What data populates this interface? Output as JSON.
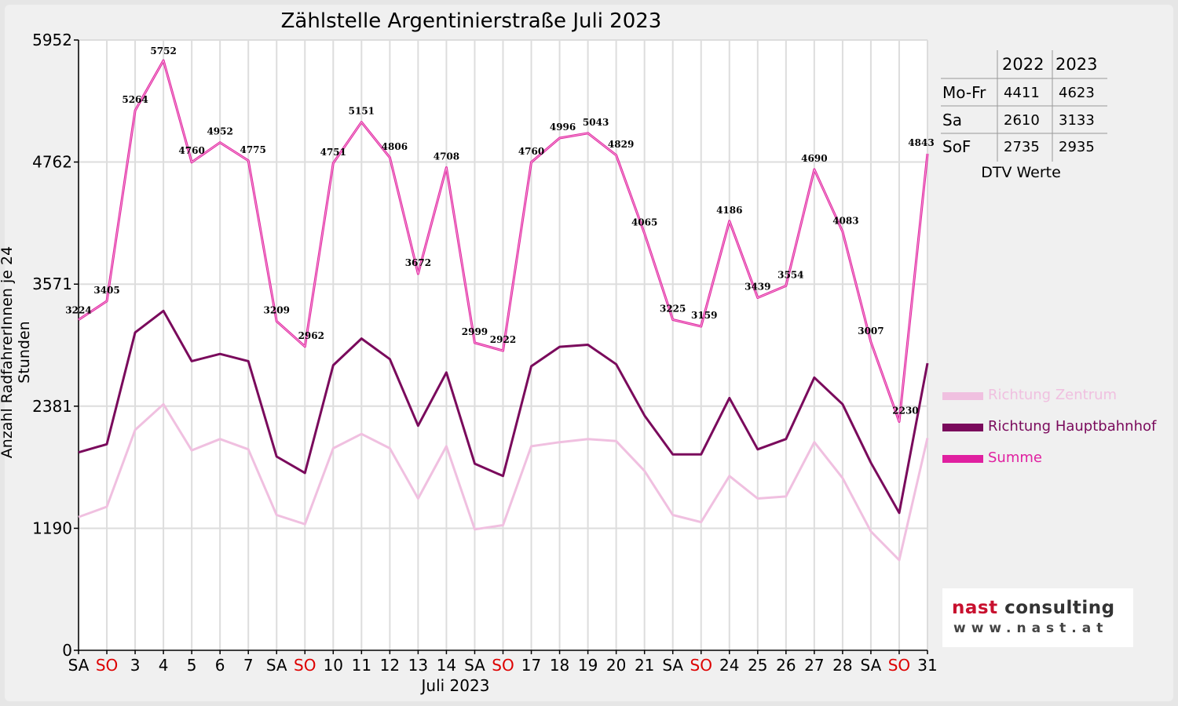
{
  "chart_data": {
    "type": "line",
    "title": "Zählstelle Argentinierstraße Juli 2023",
    "xlabel": "Juli 2023",
    "ylabel": "Anzahl RadfahrerInnen je 24 Stunden",
    "ylim": [
      0,
      5952
    ],
    "y_ticks": [
      0,
      1190,
      2381,
      3571,
      4762,
      5952
    ],
    "categories": [
      "SA",
      "SO",
      "3",
      "4",
      "5",
      "6",
      "7",
      "SA",
      "SO",
      "10",
      "11",
      "12",
      "13",
      "14",
      "SA",
      "SO",
      "17",
      "18",
      "19",
      "20",
      "21",
      "SA",
      "SO",
      "24",
      "25",
      "26",
      "27",
      "28",
      "SA",
      "SO",
      "31"
    ],
    "grid": true,
    "legend_position": "right",
    "series": [
      {
        "name": "Richtung Zentrum",
        "color": "#f0c0e0",
        "values": [
          1300,
          1400,
          2150,
          2400,
          1950,
          2060,
          1960,
          1320,
          1230,
          1970,
          2110,
          1970,
          1480,
          1990,
          1180,
          1220,
          1990,
          2030,
          2060,
          2040,
          1750,
          1320,
          1250,
          1700,
          1480,
          1500,
          2030,
          1680,
          1160,
          880,
          2070
        ]
      },
      {
        "name": "Richtung Hauptbahnhof",
        "color": "#7a0a5c",
        "values": [
          1930,
          2010,
          3100,
          3310,
          2820,
          2890,
          2820,
          1890,
          1730,
          2780,
          3040,
          2840,
          2190,
          2710,
          1820,
          1700,
          2770,
          2960,
          2980,
          2790,
          2290,
          1910,
          1910,
          2460,
          1960,
          2060,
          2660,
          2400,
          1830,
          1340,
          2800
        ]
      },
      {
        "name": "Summe",
        "color": "#e020a0",
        "values": [
          3224,
          3405,
          5264,
          5752,
          4760,
          4952,
          4775,
          3209,
          2962,
          4751,
          5151,
          4806,
          3672,
          4708,
          2999,
          2922,
          4760,
          4996,
          5043,
          4829,
          4065,
          3225,
          3159,
          4186,
          3439,
          3554,
          4690,
          4083,
          3007,
          2230,
          4843
        ],
        "labels": [
          "3224",
          "3405",
          "5264",
          "5752",
          "4760",
          "4952",
          "4775",
          "3209",
          "2962",
          "4751",
          "5151",
          "4806",
          "3672",
          "4708",
          "2999",
          "2922",
          "4760",
          "4996",
          "5043",
          "4829",
          "4065",
          "3225",
          "3159",
          "4186",
          "3439",
          "3554",
          "4690",
          "4083",
          "3007",
          "2230",
          "4843"
        ]
      }
    ],
    "weekend_color": "#dd0000"
  },
  "dtv_table": {
    "caption": "DTV Werte",
    "headers": [
      "",
      "2022",
      "2023"
    ],
    "rows": [
      {
        "label": "Mo-Fr",
        "v2022": "4411",
        "v2023": "4623"
      },
      {
        "label": "Sa",
        "v2022": "2610",
        "v2023": "3133"
      },
      {
        "label": "SoF",
        "v2022": "2735",
        "v2023": "2935"
      }
    ]
  },
  "logo": {
    "text_nast": "nast",
    "text_consulting": "consulting",
    "url": "www.nast.at",
    "color_nast": "#c8102e",
    "color_consulting": "#333333"
  }
}
